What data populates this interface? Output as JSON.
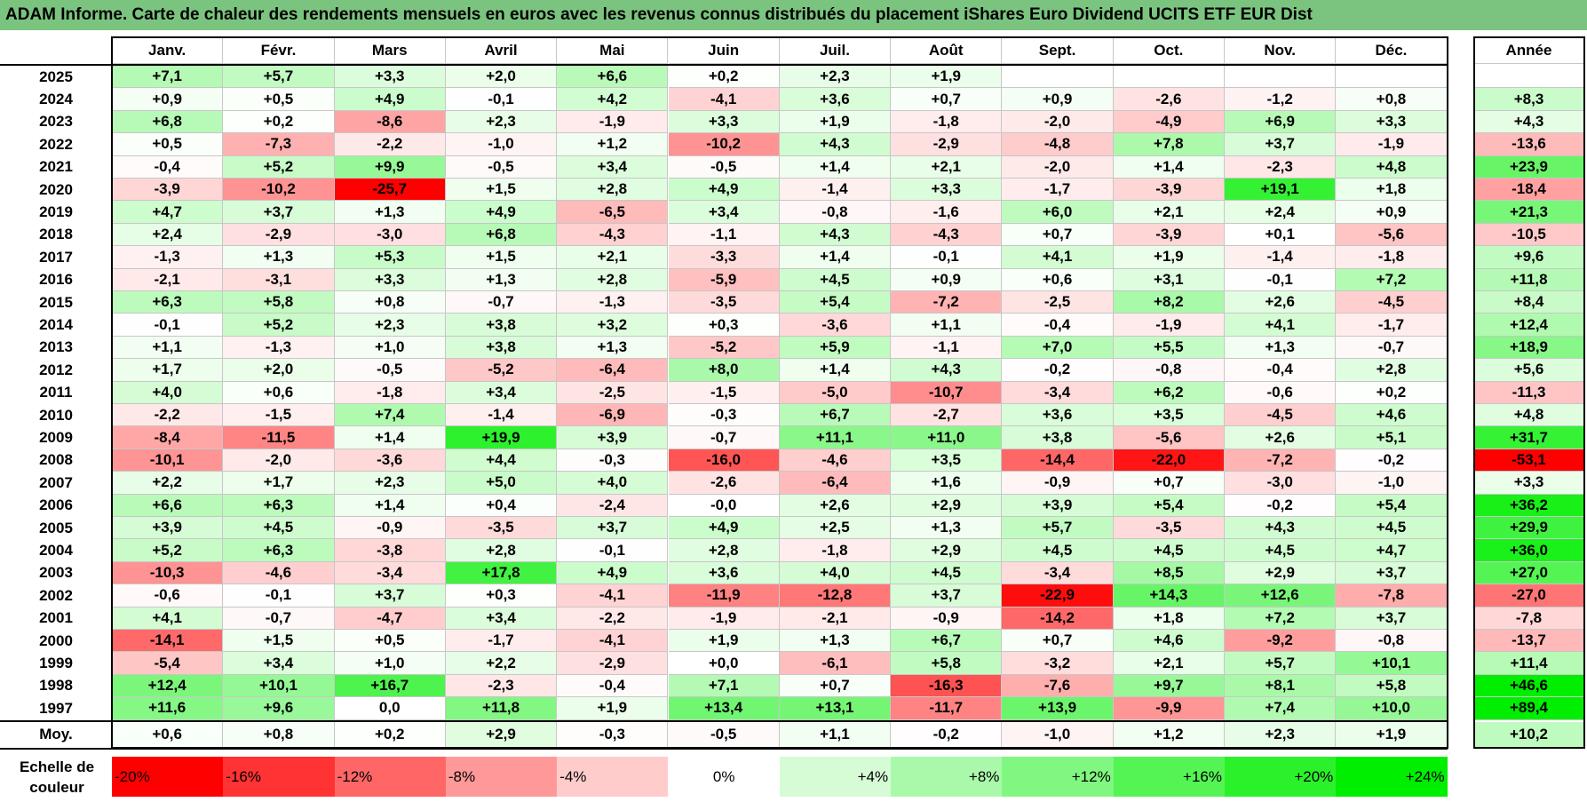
{
  "title": "ADAM Informe. Carte de chaleur des rendements mensuels en euros avec les revenus connus distribués du placement iShares Euro Dividend UCITS ETF EUR Dist",
  "colors": {
    "title_bg": "#7bc47f",
    "neg_strong": "#ff0000",
    "neutral": "#ffffff",
    "pos_strong": "#00ee00"
  },
  "chart_data": {
    "type": "heatmap",
    "months": [
      "Janv.",
      "Févr.",
      "Mars",
      "Avril",
      "Mai",
      "Juin",
      "Juil.",
      "Août",
      "Sept.",
      "Oct.",
      "Nov.",
      "Déc."
    ],
    "annual_header": "Année",
    "average_label": "Moy.",
    "rows": [
      {
        "year": "2025",
        "values": [
          "+7,1",
          "+5,7",
          "+3,3",
          "+2,0",
          "+6,6",
          "+0,2",
          "+2,3",
          "+1,9",
          "",
          "",
          "",
          ""
        ],
        "annual": ""
      },
      {
        "year": "2024",
        "values": [
          "+0,9",
          "+0,5",
          "+4,9",
          "-0,1",
          "+4,2",
          "-4,1",
          "+3,6",
          "+0,7",
          "+0,9",
          "-2,6",
          "-1,2",
          "+0,8"
        ],
        "annual": "+8,3"
      },
      {
        "year": "2023",
        "values": [
          "+6,8",
          "+0,2",
          "-8,6",
          "+2,3",
          "-1,9",
          "+3,3",
          "+1,9",
          "-1,8",
          "-2,0",
          "-4,9",
          "+6,9",
          "+3,3"
        ],
        "annual": "+4,3"
      },
      {
        "year": "2022",
        "values": [
          "+0,5",
          "-7,3",
          "-2,2",
          "-1,0",
          "+1,2",
          "-10,2",
          "+4,3",
          "-2,9",
          "-4,8",
          "+7,8",
          "+3,7",
          "-1,9"
        ],
        "annual": "-13,6"
      },
      {
        "year": "2021",
        "values": [
          "-0,4",
          "+5,2",
          "+9,9",
          "-0,5",
          "+3,4",
          "-0,5",
          "+1,4",
          "+2,1",
          "-2,0",
          "+1,4",
          "-2,3",
          "+4,8"
        ],
        "annual": "+23,9"
      },
      {
        "year": "2020",
        "values": [
          "-3,9",
          "-10,2",
          "-25,7",
          "+1,5",
          "+2,8",
          "+4,9",
          "-1,4",
          "+3,3",
          "-1,7",
          "-3,9",
          "+19,1",
          "+1,8"
        ],
        "annual": "-18,4"
      },
      {
        "year": "2019",
        "values": [
          "+4,7",
          "+3,7",
          "+1,3",
          "+4,9",
          "-6,5",
          "+3,4",
          "-0,8",
          "-1,6",
          "+6,0",
          "+2,1",
          "+2,4",
          "+0,9"
        ],
        "annual": "+21,3"
      },
      {
        "year": "2018",
        "values": [
          "+2,4",
          "-2,9",
          "-3,0",
          "+6,8",
          "-4,3",
          "-1,1",
          "+4,3",
          "-4,3",
          "+0,7",
          "-3,9",
          "+0,1",
          "-5,6"
        ],
        "annual": "-10,5"
      },
      {
        "year": "2017",
        "values": [
          "-1,3",
          "+1,3",
          "+5,3",
          "+1,5",
          "+2,1",
          "-3,3",
          "+1,4",
          "-0,1",
          "+4,1",
          "+1,9",
          "-1,4",
          "-1,8"
        ],
        "annual": "+9,6"
      },
      {
        "year": "2016",
        "values": [
          "-2,1",
          "-3,1",
          "+3,3",
          "+1,3",
          "+2,8",
          "-5,9",
          "+4,5",
          "+0,9",
          "+0,6",
          "+3,1",
          "-0,1",
          "+7,2"
        ],
        "annual": "+11,8"
      },
      {
        "year": "2015",
        "values": [
          "+6,3",
          "+5,8",
          "+0,8",
          "-0,7",
          "-1,3",
          "-3,5",
          "+5,4",
          "-7,2",
          "-2,5",
          "+8,2",
          "+2,6",
          "-4,5"
        ],
        "annual": "+8,4"
      },
      {
        "year": "2014",
        "values": [
          "-0,1",
          "+5,2",
          "+2,3",
          "+3,8",
          "+3,2",
          "+0,3",
          "-3,6",
          "+1,1",
          "-0,4",
          "-1,9",
          "+4,1",
          "-1,7"
        ],
        "annual": "+12,4"
      },
      {
        "year": "2013",
        "values": [
          "+1,1",
          "-1,3",
          "+1,0",
          "+3,8",
          "+1,3",
          "-5,2",
          "+5,9",
          "-1,1",
          "+7,0",
          "+5,5",
          "+1,3",
          "-0,7"
        ],
        "annual": "+18,9"
      },
      {
        "year": "2012",
        "values": [
          "+1,7",
          "+2,0",
          "-0,5",
          "-5,2",
          "-6,4",
          "+8,0",
          "+1,4",
          "+4,3",
          "-0,2",
          "-0,8",
          "-0,4",
          "+2,8"
        ],
        "annual": "+5,6"
      },
      {
        "year": "2011",
        "values": [
          "+4,0",
          "+0,6",
          "-1,8",
          "+3,4",
          "-2,5",
          "-1,5",
          "-5,0",
          "-10,7",
          "-3,4",
          "+6,2",
          "-0,6",
          "+0,2"
        ],
        "annual": "-11,3"
      },
      {
        "year": "2010",
        "values": [
          "-2,2",
          "-1,5",
          "+7,4",
          "-1,4",
          "-6,9",
          "-0,3",
          "+6,7",
          "-2,7",
          "+3,6",
          "+3,5",
          "-4,5",
          "+4,6"
        ],
        "annual": "+4,8"
      },
      {
        "year": "2009",
        "values": [
          "-8,4",
          "-11,5",
          "+1,4",
          "+19,9",
          "+3,9",
          "-0,7",
          "+11,1",
          "+11,0",
          "+3,8",
          "-5,6",
          "+2,6",
          "+5,1"
        ],
        "annual": "+31,7"
      },
      {
        "year": "2008",
        "values": [
          "-10,1",
          "-2,0",
          "-3,6",
          "+4,4",
          "-0,3",
          "-16,0",
          "-4,6",
          "+3,5",
          "-14,4",
          "-22,0",
          "-7,2",
          "-0,2"
        ],
        "annual": "-53,1"
      },
      {
        "year": "2007",
        "values": [
          "+2,2",
          "+1,7",
          "+2,3",
          "+5,0",
          "+4,0",
          "-2,6",
          "-6,4",
          "+1,6",
          "-0,9",
          "+0,7",
          "-3,0",
          "-1,0"
        ],
        "annual": "+3,3"
      },
      {
        "year": "2006",
        "values": [
          "+6,6",
          "+6,3",
          "+1,4",
          "+0,4",
          "-2,4",
          "-0,0",
          "+2,6",
          "+2,9",
          "+3,9",
          "+5,4",
          "-0,2",
          "+5,4"
        ],
        "annual": "+36,2"
      },
      {
        "year": "2005",
        "values": [
          "+3,9",
          "+4,5",
          "-0,9",
          "-3,5",
          "+3,7",
          "+4,9",
          "+2,5",
          "+1,3",
          "+5,7",
          "-3,5",
          "+4,3",
          "+4,5"
        ],
        "annual": "+29,9"
      },
      {
        "year": "2004",
        "values": [
          "+5,2",
          "+6,3",
          "-3,8",
          "+2,8",
          "-0,1",
          "+2,8",
          "-1,8",
          "+2,9",
          "+4,5",
          "+4,5",
          "+4,5",
          "+4,7"
        ],
        "annual": "+36,0"
      },
      {
        "year": "2003",
        "values": [
          "-10,3",
          "-4,6",
          "-3,4",
          "+17,8",
          "+4,9",
          "+3,6",
          "+4,0",
          "+4,5",
          "-3,4",
          "+8,5",
          "+2,9",
          "+3,7"
        ],
        "annual": "+27,0"
      },
      {
        "year": "2002",
        "values": [
          "-0,6",
          "-0,1",
          "+3,7",
          "+0,3",
          "-4,1",
          "-11,9",
          "-12,8",
          "+3,7",
          "-22,9",
          "+14,3",
          "+12,6",
          "-7,8"
        ],
        "annual": "-27,0"
      },
      {
        "year": "2001",
        "values": [
          "+4,1",
          "-0,7",
          "-4,7",
          "+3,4",
          "-2,2",
          "-1,9",
          "-2,1",
          "-0,9",
          "-14,2",
          "+1,8",
          "+7,2",
          "+3,7"
        ],
        "annual": "-7,8"
      },
      {
        "year": "2000",
        "values": [
          "-14,1",
          "+1,5",
          "+0,5",
          "-1,7",
          "-4,1",
          "+1,9",
          "+1,3",
          "+6,7",
          "+0,7",
          "+4,6",
          "-9,2",
          "-0,8"
        ],
        "annual": "-13,7"
      },
      {
        "year": "1999",
        "values": [
          "-5,4",
          "+3,4",
          "+1,0",
          "+2,2",
          "-2,9",
          "+0,0",
          "-6,1",
          "+5,8",
          "-3,2",
          "+2,1",
          "+5,7",
          "+10,1"
        ],
        "annual": "+11,4"
      },
      {
        "year": "1998",
        "values": [
          "+12,4",
          "+10,1",
          "+16,7",
          "-2,3",
          "-0,4",
          "+7,1",
          "+0,7",
          "-16,3",
          "-7,6",
          "+9,7",
          "+8,1",
          "+5,8"
        ],
        "annual": "+46,6"
      },
      {
        "year": "1997",
        "values": [
          "+11,6",
          "+9,6",
          "0,0",
          "+11,8",
          "+1,9",
          "+13,4",
          "+13,1",
          "-11,7",
          "+13,9",
          "-9,9",
          "+7,4",
          "+10,0"
        ],
        "annual": "+89,4"
      }
    ],
    "average": {
      "values": [
        "+0,6",
        "+0,8",
        "+0,2",
        "+2,9",
        "-0,3",
        "-0,5",
        "+1,1",
        "-0,2",
        "-1,0",
        "+1,2",
        "+2,3",
        "+1,9"
      ],
      "annual": "+10,2"
    },
    "scale": {
      "title": "Echelle de couleur",
      "stops": [
        {
          "label": "-20%",
          "value": -20
        },
        {
          "label": "-16%",
          "value": -16
        },
        {
          "label": "-12%",
          "value": -12
        },
        {
          "label": "-8%",
          "value": -8
        },
        {
          "label": "-4%",
          "value": -4
        },
        {
          "label": "0%",
          "value": 0
        },
        {
          "label": "+4%",
          "value": 4
        },
        {
          "label": "+8%",
          "value": 8
        },
        {
          "label": "+12%",
          "value": 12
        },
        {
          "label": "+16%",
          "value": 16
        },
        {
          "label": "+20%",
          "value": 20
        },
        {
          "label": "+24%",
          "value": 24
        }
      ]
    }
  }
}
